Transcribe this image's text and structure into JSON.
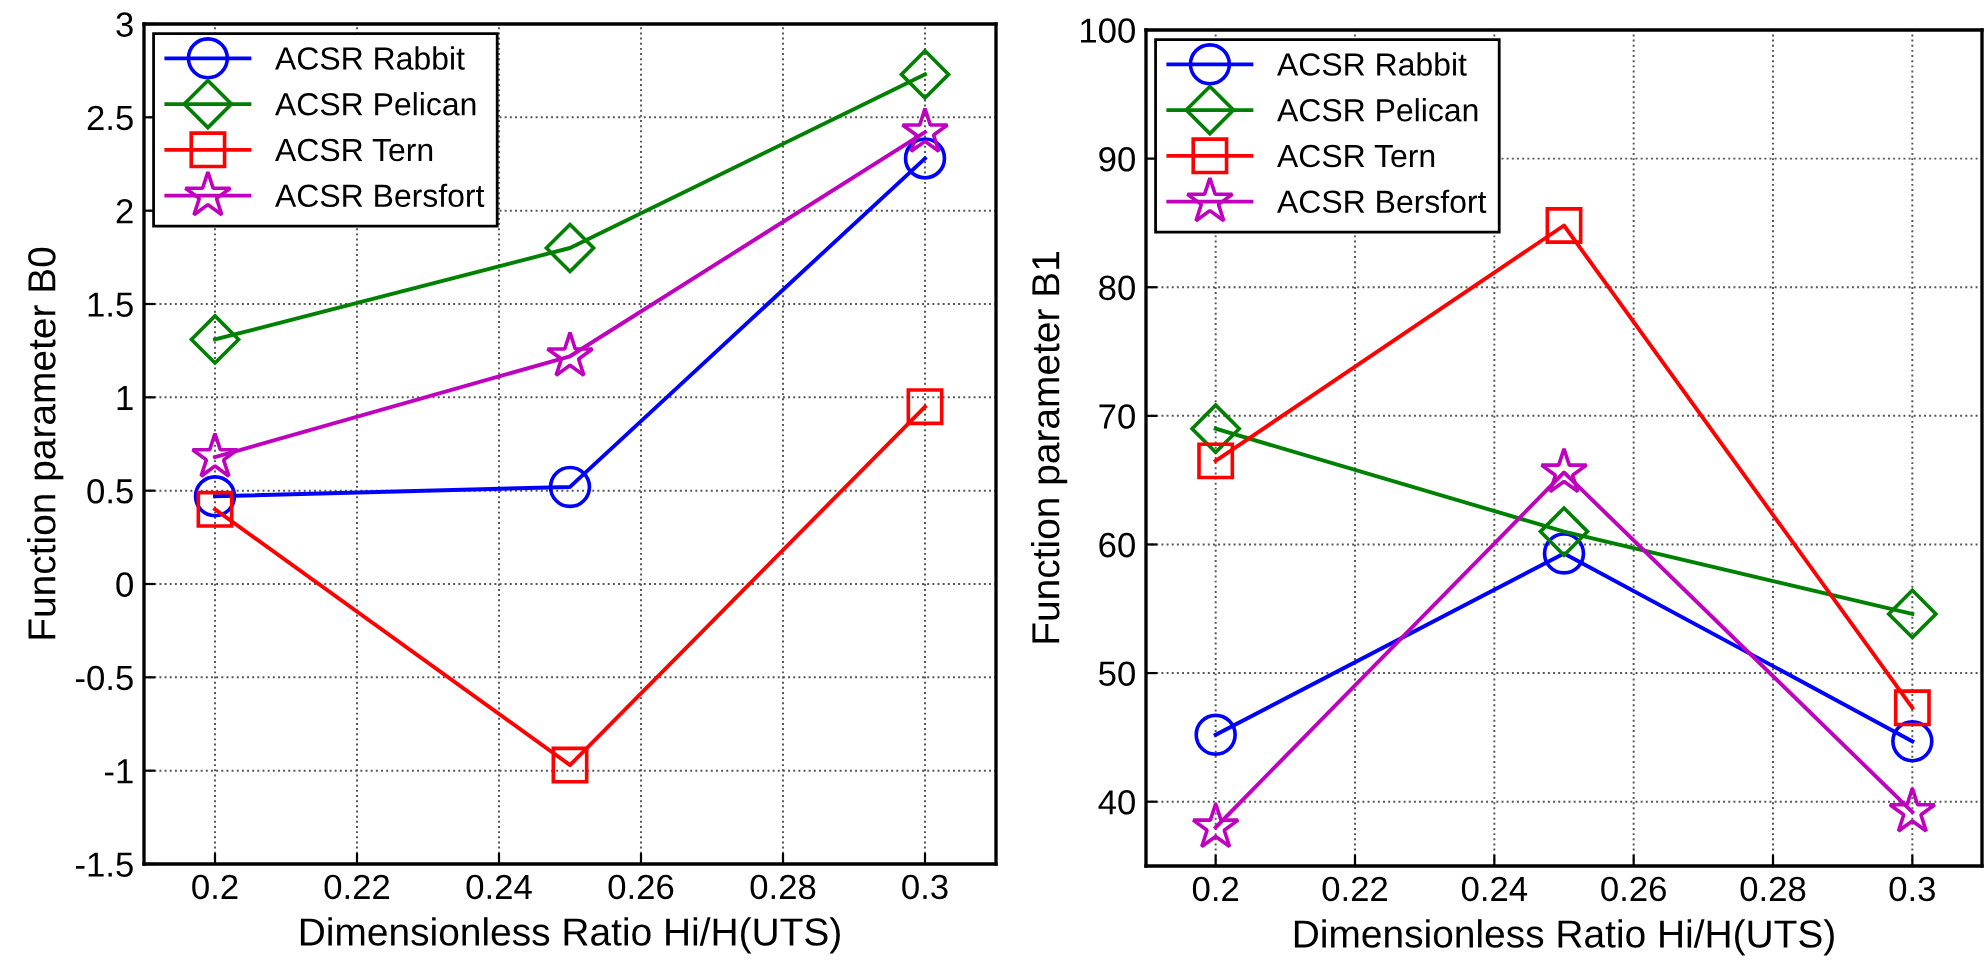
{
  "chart_data": [
    {
      "type": "line",
      "xlabel": "Dimensionless Ratio Hi/H(UTS)",
      "ylabel": "Function parameter B0",
      "x": [
        0.2,
        0.25,
        0.3
      ],
      "xlim": [
        0.19,
        0.31
      ],
      "xticks": [
        0.2,
        0.22,
        0.24,
        0.26,
        0.28,
        0.3
      ],
      "ylim": [
        -1.5,
        3
      ],
      "yticks": [
        -1.5,
        -1,
        -0.5,
        0,
        0.5,
        1,
        1.5,
        2,
        2.5,
        3
      ],
      "grid": true,
      "legend": "top left",
      "series": [
        {
          "name": "ACSR Rabbit",
          "color": "#0000ff",
          "marker": "circle",
          "values": [
            0.47,
            0.52,
            2.28
          ]
        },
        {
          "name": "ACSR Pelican",
          "color": "#008000",
          "marker": "diamond",
          "values": [
            1.31,
            1.8,
            2.73
          ]
        },
        {
          "name": "ACSR Tern",
          "color": "#ff0000",
          "marker": "square",
          "values": [
            0.4,
            -0.97,
            0.95
          ]
        },
        {
          "name": "ACSR Bersfort",
          "color": "#bf00bf",
          "marker": "star",
          "values": [
            0.68,
            1.22,
            2.42
          ]
        }
      ]
    },
    {
      "type": "line",
      "xlabel": "Dimensionless Ratio Hi/H(UTS)",
      "ylabel": "Function parameter B1",
      "x": [
        0.2,
        0.25,
        0.3
      ],
      "xlim": [
        0.19,
        0.31
      ],
      "xticks": [
        0.2,
        0.22,
        0.24,
        0.26,
        0.28,
        0.3
      ],
      "ylim": [
        35,
        100
      ],
      "yticks": [
        40,
        50,
        60,
        70,
        80,
        90,
        100
      ],
      "grid": true,
      "legend": "top left",
      "series": [
        {
          "name": "ACSR Rabbit",
          "color": "#0000ff",
          "marker": "circle",
          "values": [
            45.2,
            59.3,
            44.7
          ]
        },
        {
          "name": "ACSR Pelican",
          "color": "#008000",
          "marker": "diamond",
          "values": [
            69.0,
            61.0,
            54.6
          ]
        },
        {
          "name": "ACSR Tern",
          "color": "#ff0000",
          "marker": "square",
          "values": [
            66.5,
            84.8,
            47.3
          ]
        },
        {
          "name": "ACSR Bersfort",
          "color": "#bf00bf",
          "marker": "star",
          "values": [
            38.0,
            65.6,
            39.2
          ]
        }
      ]
    }
  ]
}
